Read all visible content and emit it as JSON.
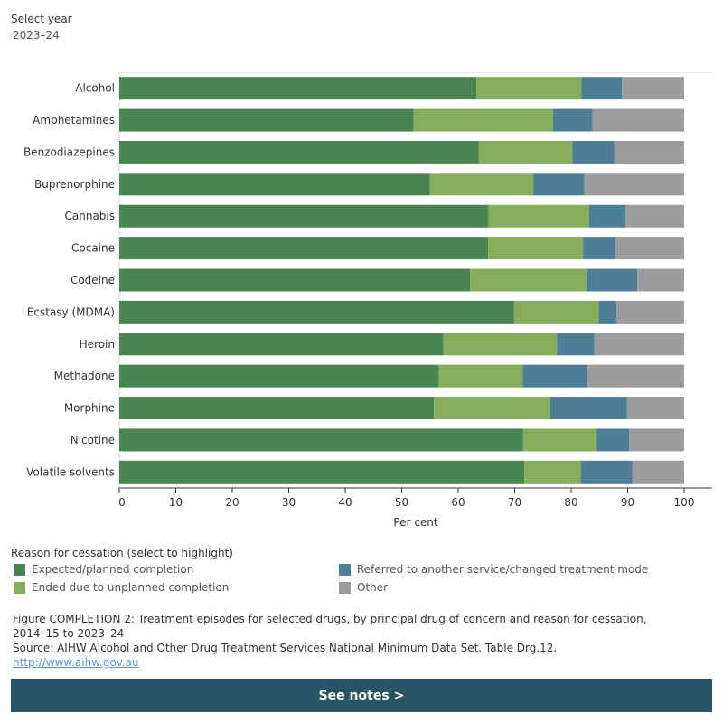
{
  "filter": {
    "label": "Select year",
    "value": "2023–24"
  },
  "legend": {
    "title": "Reason for cessation (select to highlight)",
    "items": [
      {
        "label": "Expected/planned completion",
        "color": "#4a8452"
      },
      {
        "label": "Referred to another service/changed treatment mode",
        "color": "#4e7e96"
      },
      {
        "label": "Ended due to unplanned completion",
        "color": "#86ad5a"
      },
      {
        "label": "Other",
        "color": "#9a9c9e"
      }
    ]
  },
  "caption": "Figure COMPLETION 2: Treatment episodes for selected drugs, by principal drug of concern and reason for cessation, 2014–15 to 2023–24",
  "source": "Source: AIHW Alcohol and Other Drug Treatment Services National Minimum Data Set. Table Drg.12.",
  "link": "http://www.aihw.gov.au",
  "notes_button": {
    "label": "See notes",
    "arrow": ">"
  },
  "chart_data": {
    "type": "bar",
    "orientation": "horizontal",
    "stacked": true,
    "xlabel": "Per cent",
    "xlim": [
      0,
      100
    ],
    "xticks": [
      0,
      10,
      20,
      30,
      40,
      50,
      60,
      70,
      80,
      90,
      100
    ],
    "categories": [
      "Alcohol",
      "Amphetamines",
      "Benzodiazepines",
      "Buprenorphine",
      "Cannabis",
      "Cocaine",
      "Codeine",
      "Ecstasy (MDMA)",
      "Heroin",
      "Methadone",
      "Morphine",
      "Nicotine",
      "Volatile solvents"
    ],
    "series": [
      {
        "name": "Expected/planned completion",
        "color": "#4a8452",
        "values": [
          63.2,
          52.1,
          63.6,
          55.0,
          65.4,
          65.3,
          62.1,
          69.9,
          57.4,
          56.6,
          55.7,
          71.5,
          71.7
        ]
      },
      {
        "name": "Ended due to unplanned completion",
        "color": "#86ad5a",
        "values": [
          18.6,
          24.7,
          16.6,
          18.3,
          17.8,
          16.8,
          20.6,
          15.0,
          20.1,
          14.8,
          20.6,
          13.0,
          10.0
        ]
      },
      {
        "name": "Referred to another service/changed treatment mode",
        "color": "#4e7e96",
        "values": [
          7.2,
          7.0,
          7.4,
          9.0,
          6.4,
          5.8,
          9.0,
          3.1,
          6.6,
          11.4,
          13.6,
          5.8,
          9.1
        ]
      },
      {
        "name": "Other",
        "color": "#9a9c9e",
        "values": [
          11.0,
          16.2,
          12.4,
          17.7,
          10.4,
          12.1,
          8.3,
          12.0,
          15.9,
          17.2,
          10.1,
          9.7,
          9.2
        ]
      }
    ]
  }
}
